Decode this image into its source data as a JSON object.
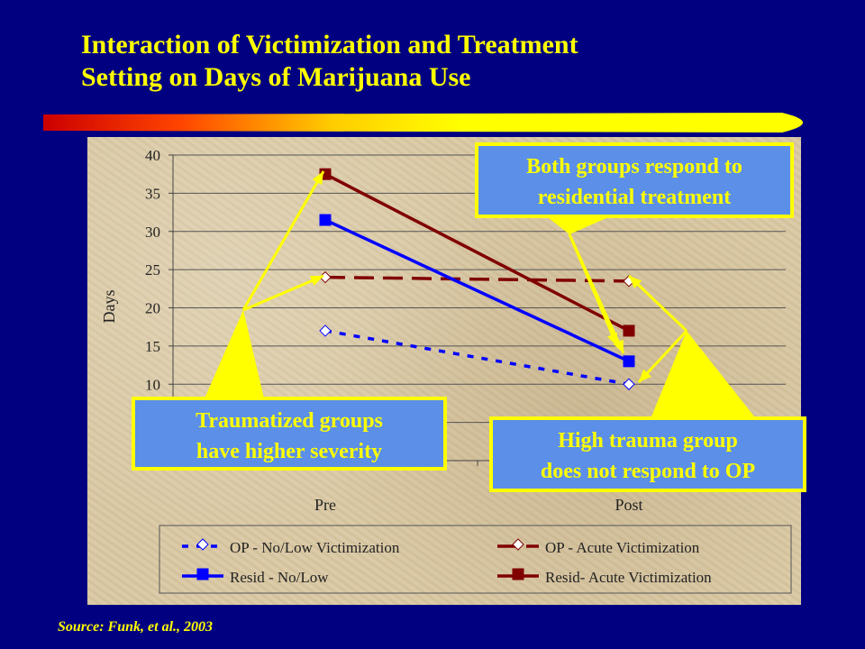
{
  "slide": {
    "title_line1": "Interaction of Victimization and Treatment",
    "title_line2": "Setting on Days of Marijuana Use",
    "source": "Source:  Funk, et al., 2003"
  },
  "callouts": {
    "residential": [
      "Both groups respond to",
      "residential treatment"
    ],
    "trauma_severity": [
      "Traumatized groups",
      "have higher severity"
    ],
    "high_trauma": [
      "High trauma group",
      "does not respond to OP"
    ]
  },
  "chart_data": {
    "type": "line",
    "categories": [
      "Pre",
      "Post"
    ],
    "ylabel": "Days",
    "xlabel": "",
    "ylim": [
      0,
      40
    ],
    "yticks": [
      "0",
      "5",
      "10",
      "15",
      "20",
      "25",
      "30",
      "35",
      "40"
    ],
    "grid": true,
    "legend_position": "bottom",
    "series": [
      {
        "name": "OP - No/Low Victimization",
        "values": [
          17,
          10
        ],
        "color": "#0000ff",
        "dash": "dotted",
        "marker": "open-diamond"
      },
      {
        "name": "OP - Acute Victimization",
        "values": [
          24,
          23.5
        ],
        "color": "#800000",
        "dash": "dashed",
        "marker": "open-diamond"
      },
      {
        "name": "Resid - No/Low",
        "values": [
          31.5,
          13
        ],
        "color": "#0000ff",
        "dash": "solid",
        "marker": "filled-square"
      },
      {
        "name": "Resid- Acute Victimization",
        "values": [
          37.5,
          17
        ],
        "color": "#800000",
        "dash": "solid",
        "marker": "filled-square"
      }
    ]
  }
}
